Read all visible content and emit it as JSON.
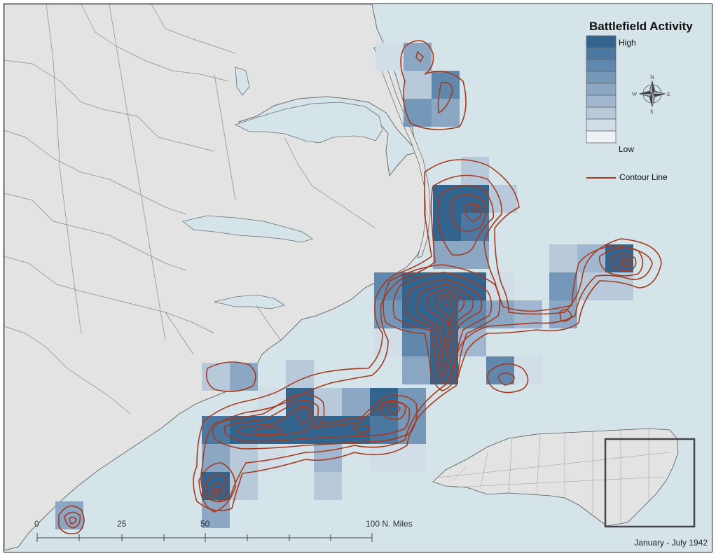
{
  "legend": {
    "title": "Battlefield Activity",
    "high_label": "High",
    "low_label": "Low",
    "contour_label": "Contour Line",
    "ramp_colors": [
      "#33648e",
      "#4b77a0",
      "#6088ad",
      "#7597b8",
      "#8ba7c4",
      "#a0b7cf",
      "#b8c9da",
      "#d2dee7",
      "#eef2f4"
    ]
  },
  "compass": {
    "n": "N",
    "s": "S",
    "e": "E",
    "w": "W"
  },
  "scale_bar": {
    "ticks": [
      "0",
      "25",
      "50",
      "100 N. Miles"
    ]
  },
  "date_range": "January - July 1942",
  "colors": {
    "water": "#d4e4e8",
    "land": "#e3e3e3",
    "contour": "#a53a1e",
    "county_lines": "#8a8a8a"
  },
  "icons": [
    "compass-rose-icon"
  ]
}
